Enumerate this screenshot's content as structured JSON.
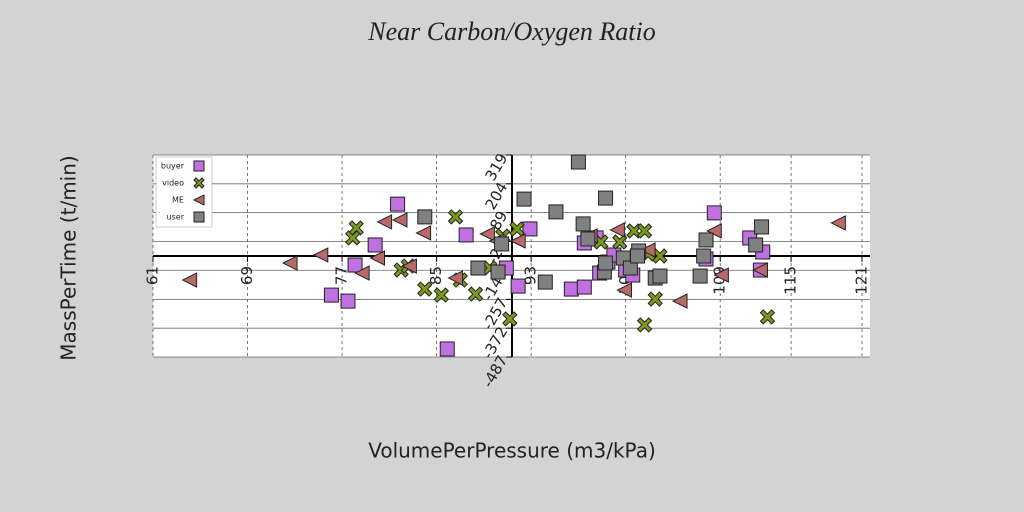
{
  "chart_data": {
    "type": "scatter",
    "title": "Near Carbon/Oxygen Ratio",
    "xlabel": "VolumePerPressure (m3/kPa)",
    "ylabel": "MassPerTime (t/min)",
    "xlim": [
      61,
      121
    ],
    "ylim": [
      -487,
      319
    ],
    "xticks": [
      61,
      69,
      77,
      85,
      93,
      101,
      109,
      115,
      121
    ],
    "yticks": [
      319,
      204,
      89,
      -26,
      -141,
      -257,
      -372,
      -487
    ],
    "grid": true,
    "legend": "upper left",
    "series": [
      {
        "name": "buyer",
        "color": "#c070e0",
        "marker": "square",
        "x": [
          81.7,
          79.8,
          78.1,
          76.1,
          77.5,
          85.9,
          87.5,
          90.9,
          91.9,
          92.9,
          96.4,
          97.5,
          97.5,
          98.5,
          98.8,
          99.5,
          100.0,
          101.0,
          101.6,
          108.5,
          107.8,
          111.5,
          112.6,
          112.4
        ],
        "values": [
          123,
          -40,
          -120,
          -240,
          -264,
          -455,
          0,
          -132,
          -204,
          24,
          -216,
          -208,
          -32,
          -12,
          -152,
          -108,
          -80,
          -140,
          -160,
          88,
          -96,
          -12,
          -68,
          -140
        ]
      },
      {
        "name": "video",
        "color": "#7a9a1a",
        "marker": "x",
        "x": [
          78.2,
          77.9,
          82.0,
          82.6,
          86.6,
          84.0,
          85.4,
          87.0,
          88.3,
          89.5,
          90.6,
          91.8,
          91.2,
          98.9,
          100.5,
          101.7,
          102.6,
          102.9,
          103.9,
          103.5,
          102.6,
          113.0
        ],
        "values": [
          28,
          -12,
          -140,
          -124,
          72,
          -216,
          -240,
          -180,
          -236,
          -132,
          -4,
          24,
          -335,
          -28,
          -28,
          16,
          16,
          -76,
          -84,
          -256,
          -359,
          -327
        ]
      },
      {
        "name": "ME",
        "color": "#b86a6a",
        "marker": "triangle",
        "x": [
          64.1,
          72.6,
          75.2,
          78.7,
          80.0,
          80.6,
          81.9,
          82.7,
          83.9,
          86.6,
          89.3,
          90.1,
          91.9,
          98.0,
          100.3,
          100.9,
          102.9,
          105.6,
          109.1,
          108.5,
          112.4,
          119.0
        ],
        "values": [
          -180,
          -112,
          -80,
          -152,
          -92,
          52,
          60,
          -124,
          8,
          -172,
          4,
          -24,
          -24,
          -4,
          20,
          -220,
          -60,
          -264,
          -160,
          16,
          -140,
          48
        ]
      },
      {
        "name": "user",
        "color": "#808080",
        "marker": "square",
        "x": [
          97.0,
          99.3,
          92.4,
          95.1,
          84.0,
          97.4,
          90.5,
          90.2,
          88.5,
          94.2,
          97.8,
          99.2,
          99.3,
          100.8,
          101.4,
          102.1,
          102.0,
          103.5,
          107.3,
          107.6,
          107.8,
          112.0,
          112.5,
          103.9
        ],
        "values": [
          291,
          147,
          143,
          92,
          72,
          44,
          -36,
          -148,
          -132,
          -188,
          -16,
          -148,
          -112,
          -92,
          -132,
          -64,
          -84,
          -172,
          -164,
          -84,
          -20,
          -40,
          32,
          -164
        ]
      }
    ]
  }
}
